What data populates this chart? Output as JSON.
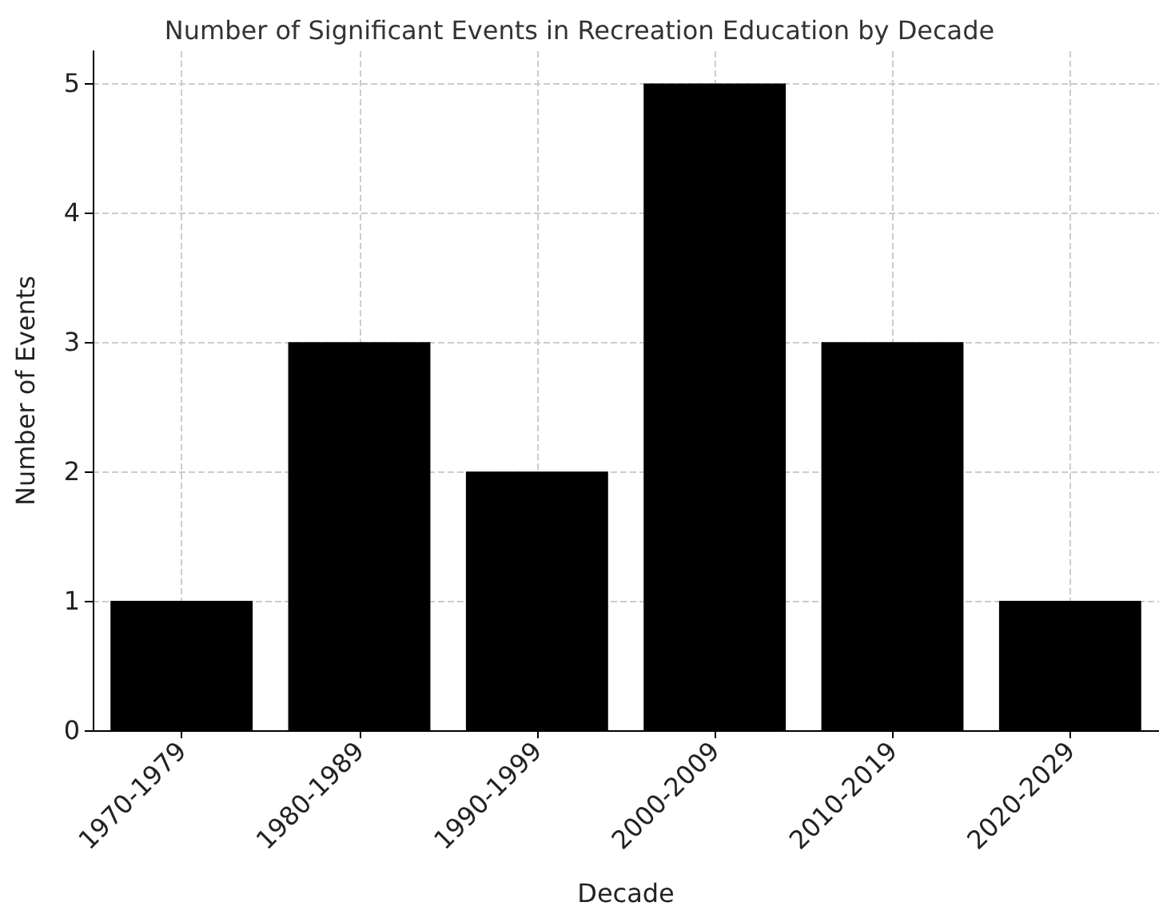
{
  "chart_data": {
    "type": "bar",
    "title": "Number of Significant Events in Recreation Education by Decade",
    "xlabel": "Decade",
    "ylabel": "Number of Events",
    "categories": [
      "1970-1979",
      "1980-1989",
      "1990-1999",
      "2000-2009",
      "2010-2019",
      "2020-2029"
    ],
    "values": [
      1,
      3,
      2,
      5,
      3,
      1
    ],
    "color": "#000000",
    "ylim": [
      0,
      5.25
    ],
    "yticks": [
      0,
      1,
      2,
      3,
      4,
      5
    ],
    "grid": true
  }
}
